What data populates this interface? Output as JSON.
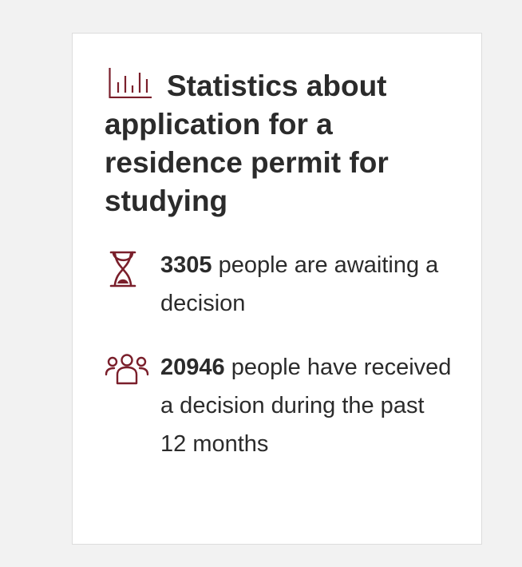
{
  "card": {
    "title": "Statistics about application for a residence permit for studying",
    "title_icon": "bar-chart-icon",
    "accent_color": "#7a1f2b"
  },
  "stats": [
    {
      "icon": "hourglass-icon",
      "number": "3305",
      "text": " people are awaiting a decision"
    },
    {
      "icon": "people-group-icon",
      "number": "20946",
      "text": " people have received a decision during the past 12 months"
    }
  ]
}
